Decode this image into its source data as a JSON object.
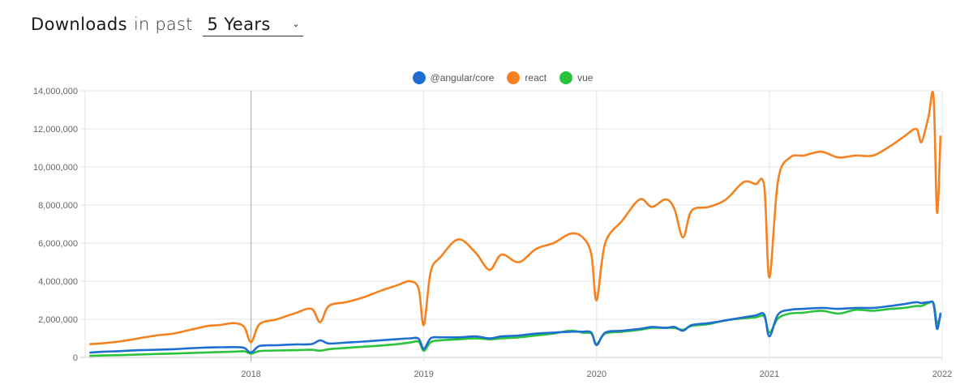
{
  "header": {
    "title_strong": "Downloads",
    "title_light": "in past",
    "range_value": "5 Years",
    "range_icon": "chevron-down-icon"
  },
  "legend": [
    {
      "label": "@angular/core",
      "color": "#1f6fd1"
    },
    {
      "label": "react",
      "color": "#f6821f"
    },
    {
      "label": "vue",
      "color": "#2ac33b"
    }
  ],
  "chart_data": {
    "type": "line",
    "title": "Downloads in past 5 Years",
    "xlabel": "",
    "ylabel": "",
    "ylim": [
      0,
      14000000
    ],
    "yticks": [
      "0",
      "2,000,000",
      "4,000,000",
      "6,000,000",
      "8,000,000",
      "10,000,000",
      "12,000,000",
      "14,000,000"
    ],
    "xticks": [
      "2018",
      "2019",
      "2020",
      "2021",
      "2022"
    ],
    "grid": true,
    "legend_position": "top",
    "x": [
      2017.07,
      2017.15,
      2017.25,
      2017.35,
      2017.45,
      2017.55,
      2017.65,
      2017.75,
      2017.82,
      2017.9,
      2017.96,
      2018.0,
      2018.05,
      2018.15,
      2018.25,
      2018.35,
      2018.4,
      2018.45,
      2018.55,
      2018.65,
      2018.75,
      2018.85,
      2018.92,
      2018.97,
      2019.0,
      2019.04,
      2019.1,
      2019.2,
      2019.3,
      2019.38,
      2019.45,
      2019.55,
      2019.65,
      2019.75,
      2019.85,
      2019.92,
      2019.97,
      2020.0,
      2020.05,
      2020.15,
      2020.25,
      2020.32,
      2020.4,
      2020.45,
      2020.5,
      2020.55,
      2020.65,
      2020.75,
      2020.85,
      2020.92,
      2020.97,
      2021.0,
      2021.05,
      2021.12,
      2021.2,
      2021.3,
      2021.4,
      2021.5,
      2021.6,
      2021.7,
      2021.78,
      2021.85,
      2021.88,
      2021.92,
      2021.95,
      2021.97,
      2021.99
    ],
    "series": [
      {
        "name": "@angular/core",
        "color": "#1f6fd1",
        "values": [
          250000,
          300000,
          330000,
          380000,
          400000,
          430000,
          480000,
          520000,
          530000,
          540000,
          500000,
          250000,
          600000,
          640000,
          680000,
          700000,
          900000,
          730000,
          780000,
          830000,
          900000,
          960000,
          1000000,
          980000,
          450000,
          1000000,
          1050000,
          1050000,
          1100000,
          1000000,
          1100000,
          1150000,
          1250000,
          1300000,
          1350000,
          1350000,
          1300000,
          650000,
          1300000,
          1400000,
          1500000,
          1600000,
          1550000,
          1600000,
          1400000,
          1700000,
          1800000,
          1950000,
          2100000,
          2200000,
          2250000,
          1100000,
          2250000,
          2500000,
          2550000,
          2600000,
          2550000,
          2600000,
          2600000,
          2700000,
          2800000,
          2900000,
          2850000,
          2900000,
          2800000,
          1500000,
          2300000
        ]
      },
      {
        "name": "react",
        "color": "#f6821f",
        "values": [
          700000,
          750000,
          850000,
          1000000,
          1150000,
          1250000,
          1450000,
          1650000,
          1700000,
          1800000,
          1600000,
          800000,
          1750000,
          2000000,
          2300000,
          2550000,
          1850000,
          2700000,
          2900000,
          3150000,
          3500000,
          3800000,
          4000000,
          3600000,
          1700000,
          4500000,
          5300000,
          6200000,
          5500000,
          4600000,
          5400000,
          5000000,
          5700000,
          6000000,
          6500000,
          6300000,
          5400000,
          3000000,
          6000000,
          7200000,
          8300000,
          7900000,
          8300000,
          7800000,
          6300000,
          7700000,
          7900000,
          8300000,
          9200000,
          9100000,
          9000000,
          4200000,
          9300000,
          10500000,
          10600000,
          10800000,
          10500000,
          10600000,
          10600000,
          11100000,
          11600000,
          12000000,
          11300000,
          12600000,
          13700000,
          7600000,
          11600000
        ]
      },
      {
        "name": "vue",
        "color": "#2ac33b",
        "values": [
          80000,
          100000,
          120000,
          150000,
          180000,
          200000,
          230000,
          260000,
          280000,
          300000,
          320000,
          200000,
          330000,
          360000,
          380000,
          400000,
          350000,
          430000,
          500000,
          560000,
          620000,
          700000,
          780000,
          820000,
          350000,
          800000,
          900000,
          950000,
          1000000,
          950000,
          1000000,
          1050000,
          1150000,
          1250000,
          1400000,
          1300000,
          1250000,
          700000,
          1250000,
          1350000,
          1450000,
          1550000,
          1550000,
          1550000,
          1450000,
          1650000,
          1750000,
          1950000,
          2050000,
          2100000,
          2150000,
          1300000,
          2050000,
          2300000,
          2350000,
          2450000,
          2300000,
          2500000,
          2450000,
          2550000,
          2600000,
          2700000,
          2700000,
          2850000,
          2850000,
          1800000,
          2200000
        ]
      }
    ]
  }
}
